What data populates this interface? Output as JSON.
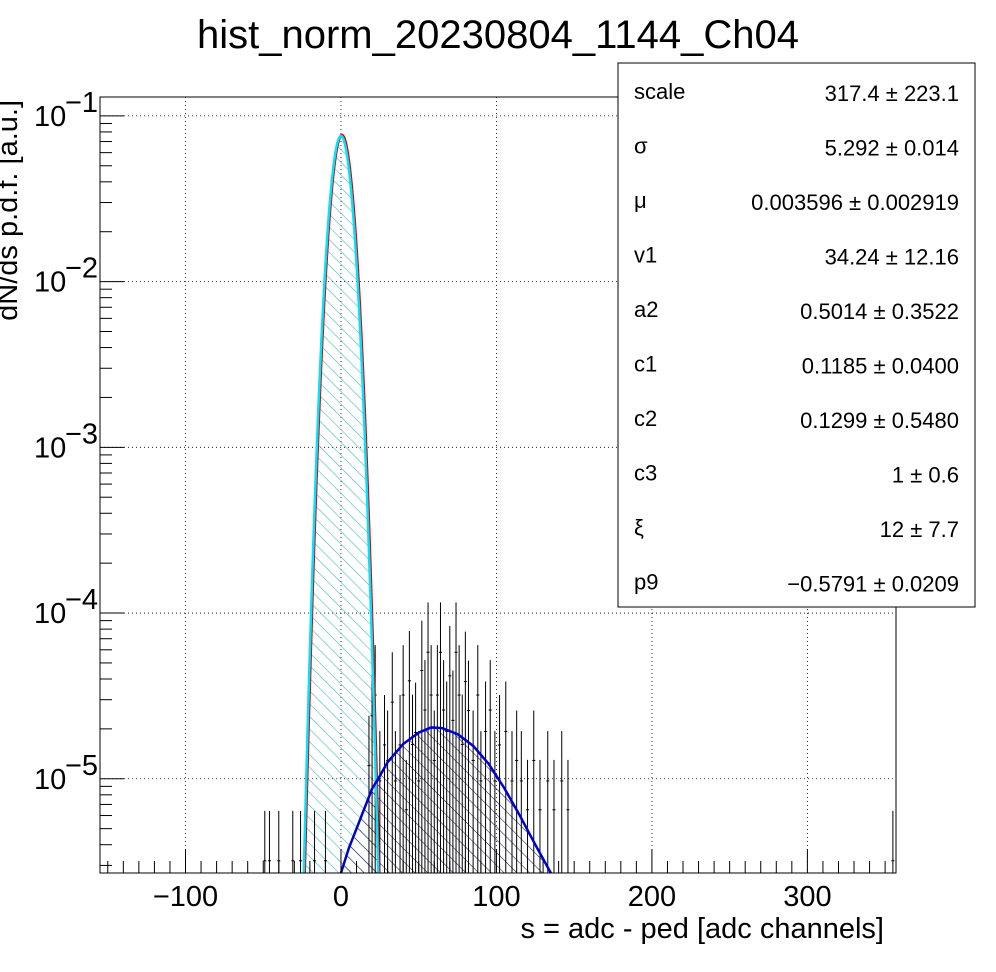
{
  "chart_data": {
    "type": "histogram",
    "title": "hist_norm_20230804_1144_Ch04",
    "xlabel": "s = adc - ped [adc channels]",
    "ylabel": "dN/ds p.d.f. [a.u.]",
    "xlim": [
      -155,
      357
    ],
    "ylim": [
      2.7e-06,
      0.13
    ],
    "yscale": "log",
    "grid": true,
    "xticks": [
      -100,
      0,
      100,
      200,
      300
    ],
    "xtick_labels": [
      "−100",
      "0",
      "100",
      "200",
      "300"
    ],
    "yticks": [
      {
        "value": 0.1,
        "base": "10",
        "exp": "−1"
      },
      {
        "value": 0.01,
        "base": "10",
        "exp": "−2"
      },
      {
        "value": 0.001,
        "base": "10",
        "exp": "−3"
      },
      {
        "value": 0.0001,
        "base": "10",
        "exp": "−4"
      },
      {
        "value": 1e-05,
        "base": "10",
        "exp": "−5"
      }
    ],
    "stats_box": {
      "position": "top-right",
      "rows": [
        {
          "name": "scale",
          "value": "317.4 ± 223.1"
        },
        {
          "name": "σ",
          "value": "5.292 ± 0.014"
        },
        {
          "name": "μ",
          "value": "0.003596 ± 0.002919"
        },
        {
          "name": "v1",
          "value": "34.24 ± 12.16"
        },
        {
          "name": "a2",
          "value": "0.5014 ± 0.3522"
        },
        {
          "name": "c1",
          "value": "0.1185 ± 0.0400"
        },
        {
          "name": "c2",
          "value": "0.1299 ± 0.5480"
        },
        {
          "name": "c3",
          "value": "1 ± 0.6"
        },
        {
          "name": "ξ",
          "value": "12 ± 7.7"
        },
        {
          "name": "p9",
          "value": "−0.5791 ± 0.0209"
        }
      ]
    },
    "curves": {
      "pedestal": {
        "color": "#00e5ff",
        "hatch_color": "#3fb9c8",
        "amplitude": 0.0756,
        "mean": 0.0036,
        "sigma": 5.292,
        "x_range": [
          -26,
          26
        ]
      },
      "signal": {
        "color": "#0000cc",
        "hatch_color": "#1a1a5a",
        "points": [
          [
            0,
            2.7e-06
          ],
          [
            5,
            3.8e-06
          ],
          [
            10,
            5e-06
          ],
          [
            15,
            6.6e-06
          ],
          [
            20,
            8.7e-06
          ],
          [
            25,
            1.04e-05
          ],
          [
            30,
            1.26e-05
          ],
          [
            40,
            1.62e-05
          ],
          [
            50,
            1.9e-05
          ],
          [
            58,
            2.04e-05
          ],
          [
            65,
            2.02e-05
          ],
          [
            75,
            1.86e-05
          ],
          [
            85,
            1.58e-05
          ],
          [
            95,
            1.23e-05
          ],
          [
            105,
            8.8e-06
          ],
          [
            115,
            6e-06
          ],
          [
            125,
            4e-06
          ],
          [
            135,
            2.7e-06
          ]
        ]
      },
      "total": {
        "color": "#e00000"
      }
    },
    "error_bars": [
      {
        "x": -49,
        "y": 3.2e-06
      },
      {
        "x": -46,
        "y": 3.2e-06
      },
      {
        "x": -40,
        "y": 3.2e-06
      },
      {
        "x": -31,
        "y": 3.2e-06
      },
      {
        "x": -26,
        "y": 3.2e-06
      },
      {
        "x": -17,
        "y": 3.2e-06
      },
      {
        "x": -10,
        "y": 3.2e-06
      },
      {
        "x": 18,
        "y": 1.2e-05
      },
      {
        "x": 20,
        "y": 2.4e-05
      },
      {
        "x": 22,
        "y": 3.2e-05
      },
      {
        "x": 25,
        "y": 9.7e-06
      },
      {
        "x": 28,
        "y": 1.6e-05
      },
      {
        "x": 30,
        "y": 1.29e-05
      },
      {
        "x": 33,
        "y": 2.9e-05
      },
      {
        "x": 35,
        "y": 9.7e-06
      },
      {
        "x": 38,
        "y": 1.6e-05
      },
      {
        "x": 40,
        "y": 3.2e-05
      },
      {
        "x": 42,
        "y": 6.5e-06
      },
      {
        "x": 44,
        "y": 3.9e-05
      },
      {
        "x": 46,
        "y": 1.61e-05
      },
      {
        "x": 48,
        "y": 1.9e-05
      },
      {
        "x": 50,
        "y": 9.7e-06
      },
      {
        "x": 52,
        "y": 4.5e-05
      },
      {
        "x": 54,
        "y": 2.6e-05
      },
      {
        "x": 56,
        "y": 5.8e-05
      },
      {
        "x": 58,
        "y": 3.2e-05
      },
      {
        "x": 60,
        "y": 1.29e-05
      },
      {
        "x": 62,
        "y": 3.2e-05
      },
      {
        "x": 64,
        "y": 5.8e-05
      },
      {
        "x": 66,
        "y": 2.6e-05
      },
      {
        "x": 68,
        "y": 1.93e-05
      },
      {
        "x": 70,
        "y": 4.18e-05
      },
      {
        "x": 72,
        "y": 2.25e-05
      },
      {
        "x": 74,
        "y": 5.8e-05
      },
      {
        "x": 76,
        "y": 3.2e-05
      },
      {
        "x": 78,
        "y": 1.61e-05
      },
      {
        "x": 80,
        "y": 3.86e-05
      },
      {
        "x": 82,
        "y": 2.58e-05
      },
      {
        "x": 85,
        "y": 1.29e-05
      },
      {
        "x": 88,
        "y": 3.2e-05
      },
      {
        "x": 90,
        "y": 9.7e-06
      },
      {
        "x": 93,
        "y": 1.93e-05
      },
      {
        "x": 96,
        "y": 2.6e-05
      },
      {
        "x": 99,
        "y": 9.7e-06
      },
      {
        "x": 102,
        "y": 1.6e-05
      },
      {
        "x": 106,
        "y": 1.93e-05
      },
      {
        "x": 110,
        "y": 9.7e-06
      },
      {
        "x": 113,
        "y": 1.29e-05
      },
      {
        "x": 116,
        "y": 9.7e-06
      },
      {
        "x": 120,
        "y": 6.5e-06
      },
      {
        "x": 124,
        "y": 1.29e-05
      },
      {
        "x": 128,
        "y": 6.5e-06
      },
      {
        "x": 133,
        "y": 9.7e-06
      },
      {
        "x": 137,
        "y": 6.5e-06
      },
      {
        "x": 142,
        "y": 9.7e-06
      },
      {
        "x": 146,
        "y": 6.5e-06
      },
      {
        "x": 355,
        "y": 3.2e-06
      }
    ]
  }
}
